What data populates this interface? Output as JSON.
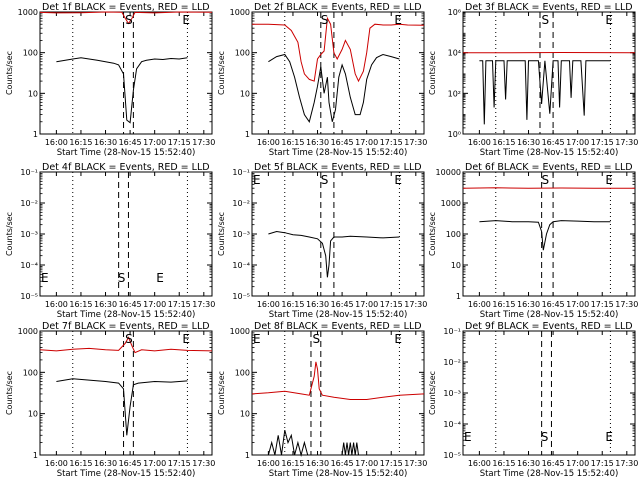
{
  "figure": {
    "ylabel": "Counts/sec",
    "xlabel": "Start Time (28-Nov-15 15:52:40)",
    "xticks": [
      "16:00",
      "16:15",
      "16:30",
      "16:45",
      "17:00",
      "17:15",
      "17:30"
    ],
    "marker_night": "S",
    "marker_end": "E",
    "black_color": "#000000",
    "red_color": "#cc0000"
  },
  "chart_data": [
    {
      "type": "line",
      "title": "Det 1f BLACK = Events, RED = LLD",
      "xlim": [
        -10,
        95
      ],
      "xticks": [
        0,
        15,
        30,
        45,
        60,
        75,
        90
      ],
      "ylog": true,
      "ylim": [
        1,
        1000
      ],
      "yticks": [
        "1",
        "10",
        "100",
        "1000"
      ],
      "dotted": [
        10,
        80
      ],
      "dashed": [
        41,
        47
      ],
      "markers": [
        {
          "x": 45,
          "l": "S"
        },
        {
          "x": 80,
          "l": "E"
        }
      ],
      "series": [
        {
          "color": "red",
          "x": [
            -10,
            0,
            15,
            30,
            40,
            42,
            44,
            46,
            48,
            60,
            75,
            95
          ],
          "y": [
            980,
            950,
            960,
            1000,
            990,
            700,
            520,
            680,
            980,
            950,
            1000,
            990
          ]
        },
        {
          "color": "black",
          "x": [
            0,
            10,
            15,
            20,
            25,
            30,
            35,
            38,
            41,
            43,
            45,
            47,
            49,
            52,
            55,
            60,
            65,
            70,
            75,
            80
          ],
          "y": [
            60,
            70,
            75,
            70,
            65,
            60,
            55,
            50,
            30,
            2.2,
            1.9,
            12,
            40,
            60,
            65,
            70,
            68,
            72,
            70,
            75
          ]
        }
      ]
    },
    {
      "type": "line",
      "title": "Det 2f BLACK = Events, RED = LLD",
      "xlim": [
        -10,
        95
      ],
      "xticks": [
        0,
        15,
        30,
        45,
        60,
        75,
        90
      ],
      "ylog": true,
      "ylim": [
        1,
        1000
      ],
      "yticks": [
        "1",
        "10",
        "100",
        "1000"
      ],
      "dotted": [
        10,
        80
      ],
      "dashed": [
        32,
        40
      ],
      "markers": [
        {
          "x": 35,
          "l": "S"
        },
        {
          "x": 80,
          "l": "E"
        }
      ],
      "series": [
        {
          "color": "red",
          "x": [
            -10,
            0,
            10,
            14,
            18,
            20,
            22,
            25,
            28,
            30,
            32,
            34,
            36,
            38,
            40,
            42,
            45,
            47,
            50,
            53,
            55,
            58,
            60,
            62,
            65,
            70,
            75,
            80,
            85,
            95
          ],
          "y": [
            500,
            500,
            480,
            350,
            180,
            60,
            30,
            22,
            20,
            70,
            90,
            110,
            700,
            500,
            100,
            70,
            120,
            200,
            120,
            30,
            20,
            35,
            100,
            400,
            500,
            480,
            480,
            500,
            480,
            470
          ]
        },
        {
          "color": "black",
          "x": [
            0,
            5,
            10,
            13,
            16,
            19,
            22,
            25,
            28,
            30,
            32,
            34,
            36,
            37,
            39,
            41,
            43,
            45,
            47,
            50,
            53,
            56,
            58,
            60,
            63,
            66,
            70,
            75,
            80
          ],
          "y": [
            60,
            80,
            90,
            60,
            25,
            8,
            3,
            2,
            6,
            15,
            45,
            10,
            25,
            6,
            2,
            4,
            25,
            50,
            30,
            8,
            3,
            3,
            6,
            22,
            50,
            75,
            90,
            80,
            70
          ]
        }
      ]
    },
    {
      "type": "line",
      "title": "Det 3f BLACK = Events, RED = LLD",
      "xlim": [
        -10,
        95
      ],
      "xticks": [
        0,
        15,
        30,
        45,
        60,
        75,
        90
      ],
      "ylog": true,
      "ylim": [
        1,
        1000000
      ],
      "yticks": [
        "10⁰",
        "10²",
        "10⁴",
        "10⁶"
      ],
      "ytick_values": [
        1,
        100,
        10000,
        1000000
      ],
      "dotted": [
        10,
        80
      ],
      "dashed": [
        37,
        45
      ],
      "markers": [
        {
          "x": 41,
          "l": "S"
        },
        {
          "x": 80,
          "l": "E"
        }
      ],
      "series": [
        {
          "color": "red",
          "x": [
            -10,
            20,
            50,
            95
          ],
          "y": [
            10000,
            9800,
            10200,
            10000
          ]
        },
        {
          "color": "black",
          "x": [
            0,
            2,
            3,
            4,
            8,
            9,
            10,
            15,
            16,
            17,
            20,
            28,
            29,
            30,
            36,
            38,
            40,
            43,
            45,
            48,
            49,
            50,
            55,
            56,
            57,
            62,
            64,
            65,
            70,
            80
          ],
          "y": [
            4000,
            4000,
            3,
            4000,
            4000,
            20,
            4000,
            4000,
            50,
            4000,
            4000,
            4000,
            5,
            4000,
            4000,
            30,
            4000,
            10,
            4000,
            4000,
            20,
            4000,
            4000,
            60,
            4000,
            4000,
            8,
            4000,
            4000,
            4000
          ]
        }
      ]
    },
    {
      "type": "line",
      "title": "Det 4f BLACK = Events, RED = LLD",
      "xlim": [
        -10,
        95
      ],
      "xticks": [
        0,
        15,
        30,
        45,
        60,
        75,
        90
      ],
      "ylog": true,
      "ylim": [
        1e-05,
        0.1
      ],
      "yticks": [
        "10⁻⁵",
        "10⁻⁴",
        "10⁻³",
        "10⁻²",
        "10⁻¹"
      ],
      "ytick_values": [
        1e-05,
        0.0001,
        0.001,
        0.01,
        0.1
      ],
      "dotted": [
        10,
        80
      ],
      "dashed": [
        38,
        44
      ],
      "markers": [
        {
          "x": 40.5,
          "l": "S"
        },
        {
          "x": 64,
          "l": "E"
        },
        {
          "x": -9.5,
          "l": "E"
        }
      ],
      "series": []
    },
    {
      "type": "line",
      "title": "Det 5f BLACK = Events, RED = LLD",
      "xlim": [
        -10,
        95
      ],
      "xticks": [
        0,
        15,
        30,
        45,
        60,
        75,
        90
      ],
      "ylog": true,
      "ylim": [
        1e-05,
        0.1
      ],
      "yticks": [
        "10⁻⁵",
        "10⁻⁴",
        "10⁻³",
        "10⁻²",
        "10⁻¹"
      ],
      "ytick_values": [
        1e-05,
        0.0001,
        0.001,
        0.01,
        0.1
      ],
      "dotted": [
        10,
        80
      ],
      "dashed": [
        32,
        40
      ],
      "markers": [
        {
          "x": 35,
          "l": "S"
        },
        {
          "x": 80,
          "l": "E"
        },
        {
          "x": -9.5,
          "l": "E"
        }
      ],
      "series": [
        {
          "color": "black",
          "x": [
            0,
            5,
            10,
            15,
            20,
            25,
            30,
            33,
            35,
            36,
            37,
            38,
            40,
            45,
            50,
            60,
            70,
            80
          ],
          "y": [
            0.001,
            0.0012,
            0.0011,
            0.00095,
            0.0009,
            0.0008,
            0.0007,
            0.0005,
            0.0002,
            4e-05,
            0.0001,
            0.0006,
            0.0008,
            0.0008,
            0.00085,
            0.0008,
            0.00075,
            0.0008
          ]
        }
      ]
    },
    {
      "type": "line",
      "title": "Det 6f BLACK = Events, RED = LLD",
      "xlim": [
        -10,
        95
      ],
      "xticks": [
        0,
        15,
        30,
        45,
        60,
        75,
        90
      ],
      "ylog": true,
      "ylim": [
        1,
        10000
      ],
      "yticks": [
        "1",
        "10",
        "100",
        "1000",
        "10000"
      ],
      "dotted": [
        10,
        80
      ],
      "dashed": [
        38,
        45
      ],
      "markers": [
        {
          "x": 41,
          "l": "S"
        },
        {
          "x": 80,
          "l": "E"
        }
      ],
      "series": [
        {
          "color": "red",
          "x": [
            -10,
            10,
            30,
            50,
            70,
            95
          ],
          "y": [
            3000,
            3100,
            3000,
            3050,
            3000,
            3000
          ]
        },
        {
          "color": "black",
          "x": [
            0,
            10,
            20,
            30,
            36,
            38,
            39,
            41,
            43,
            45,
            50,
            60,
            70,
            80
          ],
          "y": [
            250,
            270,
            250,
            250,
            240,
            120,
            30,
            100,
            200,
            250,
            270,
            260,
            250,
            250
          ]
        }
      ]
    },
    {
      "type": "line",
      "title": "Det 7f BLACK = Events, RED = LLD",
      "xlim": [
        -10,
        95
      ],
      "xticks": [
        0,
        15,
        30,
        45,
        60,
        75,
        90
      ],
      "ylog": true,
      "ylim": [
        1,
        1000
      ],
      "yticks": [
        "1",
        "10",
        "100",
        "1000"
      ],
      "dotted": [
        10,
        80
      ],
      "dashed": [
        41,
        47
      ],
      "markers": [
        {
          "x": 45,
          "l": "S"
        },
        {
          "x": 80,
          "l": "E"
        }
      ],
      "series": [
        {
          "color": "red",
          "x": [
            -10,
            0,
            10,
            20,
            30,
            38,
            42,
            44,
            46,
            48,
            52,
            60,
            70,
            80,
            95
          ],
          "y": [
            350,
            330,
            360,
            380,
            350,
            340,
            500,
            700,
            450,
            300,
            350,
            330,
            360,
            340,
            330
          ]
        },
        {
          "color": "black",
          "x": [
            0,
            10,
            20,
            30,
            38,
            41,
            43,
            45,
            47,
            50,
            60,
            70,
            80
          ],
          "y": [
            60,
            70,
            65,
            60,
            55,
            40,
            3,
            15,
            50,
            55,
            60,
            58,
            62
          ]
        }
      ]
    },
    {
      "type": "line",
      "title": "Det 8f BLACK = Events, RED = LLD",
      "xlim": [
        -10,
        95
      ],
      "xticks": [
        0,
        15,
        30,
        45,
        60,
        75,
        90
      ],
      "ylog": true,
      "ylim": [
        1,
        1000
      ],
      "yticks": [
        "1",
        "10",
        "100",
        "1000"
      ],
      "dotted": [
        10,
        80
      ],
      "dashed": [
        26,
        32
      ],
      "markers": [
        {
          "x": 30,
          "l": "S"
        },
        {
          "x": 80,
          "l": "E"
        },
        {
          "x": -9.5,
          "l": "E"
        }
      ],
      "series": [
        {
          "color": "red",
          "x": [
            -10,
            0,
            10,
            20,
            25,
            28,
            29,
            30,
            31,
            33,
            40,
            50,
            60,
            70,
            80,
            95
          ],
          "y": [
            30,
            32,
            35,
            30,
            28,
            80,
            180,
            120,
            40,
            28,
            25,
            22,
            22,
            25,
            28,
            30
          ]
        },
        {
          "color": "black",
          "x": [
            0,
            2,
            4,
            6,
            8,
            10,
            12,
            14,
            16,
            18,
            20,
            22,
            24,
            45,
            46,
            47,
            48,
            49,
            50,
            51,
            52,
            53,
            54,
            55
          ],
          "y": [
            1,
            2,
            1,
            3,
            1,
            4,
            2,
            3,
            1,
            2,
            1,
            2,
            1,
            1,
            2,
            1,
            2,
            1,
            2,
            1,
            2,
            1,
            2,
            1
          ]
        }
      ]
    },
    {
      "type": "line",
      "title": "Det 9f BLACK = Events, RED = LLD",
      "xlim": [
        -10,
        95
      ],
      "xticks": [
        0,
        15,
        30,
        45,
        60,
        75,
        90
      ],
      "ylog": true,
      "ylim": [
        1e-05,
        0.1
      ],
      "yticks": [
        "10⁻⁵",
        "10⁻⁴",
        "10⁻³",
        "10⁻²",
        "10⁻¹"
      ],
      "ytick_values": [
        1e-05,
        0.0001,
        0.001,
        0.01,
        0.1
      ],
      "dotted": [
        10,
        80
      ],
      "dashed": [
        38,
        44
      ],
      "markers": [
        {
          "x": 40.5,
          "l": "S"
        },
        {
          "x": 80,
          "l": "E"
        },
        {
          "x": -9.5,
          "l": "E"
        }
      ],
      "series": []
    }
  ]
}
